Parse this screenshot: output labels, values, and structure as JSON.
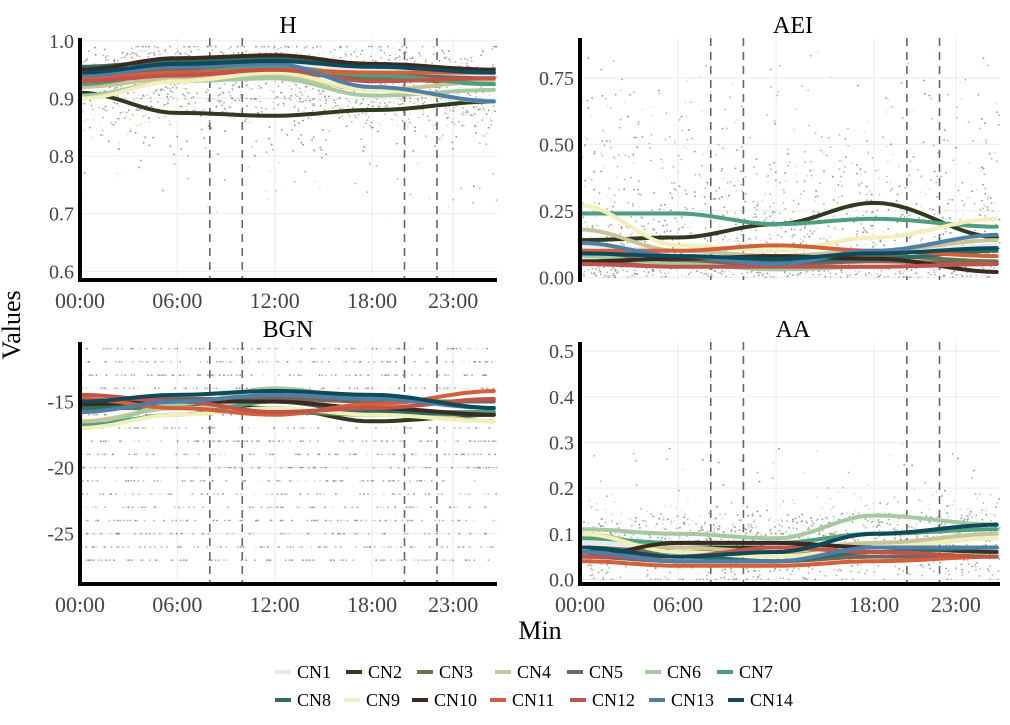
{
  "figure": {
    "xlabel": "Min",
    "ylabel": "Values"
  },
  "series_names": [
    "CN1",
    "CN2",
    "CN3",
    "CN4",
    "CN5",
    "CN6",
    "CN7",
    "CN8",
    "CN9",
    "CN10",
    "CN11",
    "CN12",
    "CN13",
    "CN14"
  ],
  "colors": {
    "CN1": "#e8e8e8",
    "CN2": "#2f3a1f",
    "CN3": "#6b7350",
    "CN4": "#c8c498",
    "CN5": "#7a645a",
    "CN6": "#a6c9a2",
    "CN7": "#4f9f7f",
    "CN8": "#2f6e5f",
    "CN9": "#f2efb8",
    "CN10": "#3a2a22",
    "CN11": "#d2603a",
    "CN12": "#c0534b",
    "CN13": "#4f7fa6",
    "CN14": "#0e4a5a",
    "guide_line": "#666666",
    "grid": "#ebebeb",
    "axis": "#000000"
  },
  "chart_data": [
    {
      "type": "scatter",
      "title": "H",
      "x_ticks": [
        "00:00",
        "06:00",
        "12:00",
        "18:00",
        "23:00"
      ],
      "x_tick_hours": [
        0,
        6,
        12,
        18,
        23
      ],
      "xlim": [
        0,
        25.7
      ],
      "ylim": [
        0.585,
        1.005
      ],
      "y_ticks": [
        0.6,
        0.7,
        0.8,
        0.9,
        1.0
      ],
      "y_tick_labels": [
        "0.6",
        "0.7",
        "0.8",
        "0.9",
        "1.0"
      ],
      "vlines": [
        8,
        10,
        20,
        22
      ],
      "series": [
        {
          "name": "CN1",
          "x": [
            0,
            6,
            12,
            18,
            25.7
          ],
          "y": [
            0.93,
            0.95,
            0.96,
            0.95,
            0.94
          ]
        },
        {
          "name": "CN2",
          "x": [
            0,
            6,
            12,
            18,
            25.7
          ],
          "y": [
            0.91,
            0.875,
            0.87,
            0.88,
            0.895
          ]
        },
        {
          "name": "CN3",
          "x": [
            0,
            6,
            12,
            18,
            25.7
          ],
          "y": [
            0.93,
            0.94,
            0.945,
            0.935,
            0.925
          ]
        },
        {
          "name": "CN4",
          "x": [
            0,
            6,
            12,
            18,
            25.7
          ],
          "y": [
            0.92,
            0.935,
            0.94,
            0.915,
            0.93
          ]
        },
        {
          "name": "CN5",
          "x": [
            0,
            6,
            12,
            18,
            25.7
          ],
          "y": [
            0.94,
            0.95,
            0.955,
            0.94,
            0.935
          ]
        },
        {
          "name": "CN6",
          "x": [
            0,
            6,
            12,
            18,
            25.7
          ],
          "y": [
            0.905,
            0.93,
            0.935,
            0.905,
            0.915
          ]
        },
        {
          "name": "CN7",
          "x": [
            0,
            6,
            12,
            18,
            25.7
          ],
          "y": [
            0.925,
            0.945,
            0.955,
            0.94,
            0.925
          ]
        },
        {
          "name": "CN8",
          "x": [
            0,
            6,
            12,
            18,
            25.7
          ],
          "y": [
            0.955,
            0.965,
            0.97,
            0.96,
            0.945
          ]
        },
        {
          "name": "CN9",
          "x": [
            0,
            6,
            12,
            18,
            25.7
          ],
          "y": [
            0.9,
            0.93,
            0.945,
            0.915,
            0.895
          ]
        },
        {
          "name": "CN10",
          "x": [
            0,
            6,
            12,
            18,
            25.7
          ],
          "y": [
            0.95,
            0.97,
            0.975,
            0.96,
            0.95
          ]
        },
        {
          "name": "CN11",
          "x": [
            0,
            6,
            12,
            18,
            25.7
          ],
          "y": [
            0.935,
            0.945,
            0.95,
            0.945,
            0.945
          ]
        },
        {
          "name": "CN12",
          "x": [
            0,
            6,
            12,
            18,
            25.7
          ],
          "y": [
            0.93,
            0.94,
            0.95,
            0.93,
            0.935
          ]
        },
        {
          "name": "CN13",
          "x": [
            0,
            6,
            12,
            18,
            25.7
          ],
          "y": [
            0.94,
            0.955,
            0.96,
            0.92,
            0.895
          ]
        },
        {
          "name": "CN14",
          "x": [
            0,
            6,
            12,
            18,
            25.7
          ],
          "y": [
            0.945,
            0.96,
            0.965,
            0.955,
            0.945
          ]
        }
      ]
    },
    {
      "type": "scatter",
      "title": "AEI",
      "x_ticks": [],
      "x_tick_hours": [],
      "xlim": [
        0,
        25.7
      ],
      "ylim": [
        -0.01,
        0.9
      ],
      "y_ticks": [
        0,
        0.25,
        0.5,
        0.75
      ],
      "y_tick_labels": [
        "0.00",
        "0.25",
        "0.50",
        "0.75"
      ],
      "vlines": [
        8,
        10,
        20,
        22
      ],
      "series": [
        {
          "name": "CN1",
          "x": [
            0,
            6,
            12,
            18,
            25.7
          ],
          "y": [
            0.12,
            0.1,
            0.08,
            0.09,
            0.12
          ]
        },
        {
          "name": "CN2",
          "x": [
            0,
            6,
            12,
            18,
            25.7
          ],
          "y": [
            0.14,
            0.15,
            0.2,
            0.28,
            0.15
          ]
        },
        {
          "name": "CN3",
          "x": [
            0,
            6,
            12,
            18,
            25.7
          ],
          "y": [
            0.08,
            0.06,
            0.07,
            0.08,
            0.06
          ]
        },
        {
          "name": "CN4",
          "x": [
            0,
            6,
            12,
            18,
            25.7
          ],
          "y": [
            0.18,
            0.1,
            0.08,
            0.1,
            0.14
          ]
        },
        {
          "name": "CN5",
          "x": [
            0,
            6,
            12,
            18,
            25.7
          ],
          "y": [
            0.06,
            0.05,
            0.05,
            0.06,
            0.05
          ]
        },
        {
          "name": "CN6",
          "x": [
            0,
            6,
            12,
            18,
            25.7
          ],
          "y": [
            0.08,
            0.05,
            0.03,
            0.04,
            0.05
          ]
        },
        {
          "name": "CN7",
          "x": [
            0,
            6,
            12,
            18,
            25.7
          ],
          "y": [
            0.24,
            0.24,
            0.2,
            0.22,
            0.19
          ]
        },
        {
          "name": "CN8",
          "x": [
            0,
            6,
            12,
            18,
            25.7
          ],
          "y": [
            0.1,
            0.08,
            0.06,
            0.07,
            0.1
          ]
        },
        {
          "name": "CN9",
          "x": [
            0,
            6,
            12,
            18,
            25.7
          ],
          "y": [
            0.27,
            0.12,
            0.1,
            0.15,
            0.22
          ]
        },
        {
          "name": "CN10",
          "x": [
            0,
            6,
            12,
            18,
            25.7
          ],
          "y": [
            0.06,
            0.07,
            0.08,
            0.07,
            0.02
          ]
        },
        {
          "name": "CN11",
          "x": [
            0,
            6,
            12,
            18,
            25.7
          ],
          "y": [
            0.1,
            0.1,
            0.12,
            0.1,
            0.08
          ]
        },
        {
          "name": "CN12",
          "x": [
            0,
            6,
            12,
            18,
            25.7
          ],
          "y": [
            0.05,
            0.04,
            0.04,
            0.04,
            0.05
          ]
        },
        {
          "name": "CN13",
          "x": [
            0,
            6,
            12,
            18,
            25.7
          ],
          "y": [
            0.13,
            0.08,
            0.05,
            0.1,
            0.16
          ]
        },
        {
          "name": "CN14",
          "x": [
            0,
            6,
            12,
            18,
            25.7
          ],
          "y": [
            0.09,
            0.08,
            0.07,
            0.09,
            0.11
          ]
        }
      ]
    },
    {
      "type": "scatter",
      "title": "BGN",
      "x_ticks": [
        "00:00",
        "06:00",
        "12:00",
        "18:00",
        "23:00"
      ],
      "x_tick_hours": [
        0,
        6,
        12,
        18,
        23
      ],
      "xlim": [
        0,
        25.7
      ],
      "ylim": [
        -28.8,
        -10.5
      ],
      "y_ticks": [
        -25,
        -20,
        -15
      ],
      "y_tick_labels": [
        "-25",
        "-20",
        "-15"
      ],
      "vlines": [
        8,
        10,
        20,
        22
      ],
      "series": [
        {
          "name": "CN1",
          "x": [
            0,
            6,
            12,
            18,
            25.7
          ],
          "y": [
            -15.5,
            -15,
            -14.8,
            -15,
            -15.5
          ]
        },
        {
          "name": "CN2",
          "x": [
            0,
            6,
            12,
            18,
            25.7
          ],
          "y": [
            -15.5,
            -15.2,
            -15.5,
            -16.5,
            -16
          ]
        },
        {
          "name": "CN3",
          "x": [
            0,
            6,
            12,
            18,
            25.7
          ],
          "y": [
            -15.5,
            -15.5,
            -15.8,
            -16,
            -15.8
          ]
        },
        {
          "name": "CN4",
          "x": [
            0,
            6,
            12,
            18,
            25.7
          ],
          "y": [
            -16.5,
            -15.5,
            -15,
            -15.5,
            -16.5
          ]
        },
        {
          "name": "CN5",
          "x": [
            0,
            6,
            12,
            18,
            25.7
          ],
          "y": [
            -15,
            -14.8,
            -14.8,
            -15,
            -15
          ]
        },
        {
          "name": "CN6",
          "x": [
            0,
            6,
            12,
            18,
            25.7
          ],
          "y": [
            -17,
            -15.2,
            -14,
            -14.8,
            -15.5
          ]
        },
        {
          "name": "CN7",
          "x": [
            0,
            6,
            12,
            18,
            25.7
          ],
          "y": [
            -16.8,
            -16,
            -15,
            -15.8,
            -15.8
          ]
        },
        {
          "name": "CN8",
          "x": [
            0,
            6,
            12,
            18,
            25.7
          ],
          "y": [
            -15.5,
            -15,
            -15,
            -15.8,
            -16
          ]
        },
        {
          "name": "CN9",
          "x": [
            0,
            6,
            12,
            18,
            25.7
          ],
          "y": [
            -17,
            -16,
            -15.5,
            -16,
            -16.5
          ]
        },
        {
          "name": "CN10",
          "x": [
            0,
            6,
            12,
            18,
            25.7
          ],
          "y": [
            -15.2,
            -15,
            -15,
            -15.5,
            -16
          ]
        },
        {
          "name": "CN11",
          "x": [
            0,
            6,
            12,
            18,
            25.7
          ],
          "y": [
            -14.8,
            -15.5,
            -16,
            -15.2,
            -14.2
          ]
        },
        {
          "name": "CN12",
          "x": [
            0,
            6,
            12,
            18,
            25.7
          ],
          "y": [
            -14.5,
            -15,
            -15.8,
            -15.5,
            -14.8
          ]
        },
        {
          "name": "CN13",
          "x": [
            0,
            6,
            12,
            18,
            25.7
          ],
          "y": [
            -15.8,
            -15,
            -14.5,
            -14.8,
            -15.5
          ]
        },
        {
          "name": "CN14",
          "x": [
            0,
            6,
            12,
            18,
            25.7
          ],
          "y": [
            -15,
            -14.5,
            -14.2,
            -14.5,
            -15.5
          ]
        }
      ]
    },
    {
      "type": "scatter",
      "title": "AA",
      "x_ticks": [
        "00:00",
        "06:00",
        "12:00",
        "18:00",
        "23:00"
      ],
      "x_tick_hours": [
        0,
        6,
        12,
        18,
        23
      ],
      "xlim": [
        0,
        25.7
      ],
      "ylim": [
        -0.01,
        0.52
      ],
      "y_ticks": [
        0,
        0.1,
        0.2,
        0.3,
        0.4,
        0.5
      ],
      "y_tick_labels": [
        "0.0",
        "0.1",
        "0.2",
        "0.3",
        "0.4",
        "0.5"
      ],
      "vlines": [
        8,
        10,
        20,
        22
      ],
      "series": [
        {
          "name": "CN1",
          "x": [
            0,
            6,
            12,
            18,
            25.7
          ],
          "y": [
            0.08,
            0.07,
            0.07,
            0.08,
            0.09
          ]
        },
        {
          "name": "CN2",
          "x": [
            0,
            6,
            12,
            18,
            25.7
          ],
          "y": [
            0.06,
            0.07,
            0.07,
            0.07,
            0.06
          ]
        },
        {
          "name": "CN3",
          "x": [
            0,
            6,
            12,
            18,
            25.7
          ],
          "y": [
            0.07,
            0.06,
            0.06,
            0.07,
            0.07
          ]
        },
        {
          "name": "CN4",
          "x": [
            0,
            6,
            12,
            18,
            25.7
          ],
          "y": [
            0.1,
            0.07,
            0.06,
            0.08,
            0.1
          ]
        },
        {
          "name": "CN5",
          "x": [
            0,
            6,
            12,
            18,
            25.7
          ],
          "y": [
            0.05,
            0.04,
            0.04,
            0.05,
            0.05
          ]
        },
        {
          "name": "CN6",
          "x": [
            0,
            6,
            12,
            18,
            25.7
          ],
          "y": [
            0.11,
            0.1,
            0.09,
            0.14,
            0.12
          ]
        },
        {
          "name": "CN7",
          "x": [
            0,
            6,
            12,
            18,
            25.7
          ],
          "y": [
            0.09,
            0.08,
            0.08,
            0.1,
            0.11
          ]
        },
        {
          "name": "CN8",
          "x": [
            0,
            6,
            12,
            18,
            25.7
          ],
          "y": [
            0.06,
            0.05,
            0.04,
            0.06,
            0.07
          ]
        },
        {
          "name": "CN9",
          "x": [
            0,
            6,
            12,
            18,
            25.7
          ],
          "y": [
            0.1,
            0.06,
            0.05,
            0.07,
            0.09
          ]
        },
        {
          "name": "CN10",
          "x": [
            0,
            6,
            12,
            18,
            25.7
          ],
          "y": [
            0.05,
            0.08,
            0.08,
            0.07,
            0.07
          ]
        },
        {
          "name": "CN11",
          "x": [
            0,
            6,
            12,
            18,
            25.7
          ],
          "y": [
            0.04,
            0.03,
            0.03,
            0.04,
            0.05
          ]
        },
        {
          "name": "CN12",
          "x": [
            0,
            6,
            12,
            18,
            25.7
          ],
          "y": [
            0.05,
            0.05,
            0.07,
            0.06,
            0.05
          ]
        },
        {
          "name": "CN13",
          "x": [
            0,
            6,
            12,
            18,
            25.7
          ],
          "y": [
            0.06,
            0.04,
            0.04,
            0.07,
            0.07
          ]
        },
        {
          "name": "CN14",
          "x": [
            0,
            6,
            12,
            18,
            25.7
          ],
          "y": [
            0.07,
            0.05,
            0.06,
            0.1,
            0.12
          ]
        }
      ]
    }
  ]
}
